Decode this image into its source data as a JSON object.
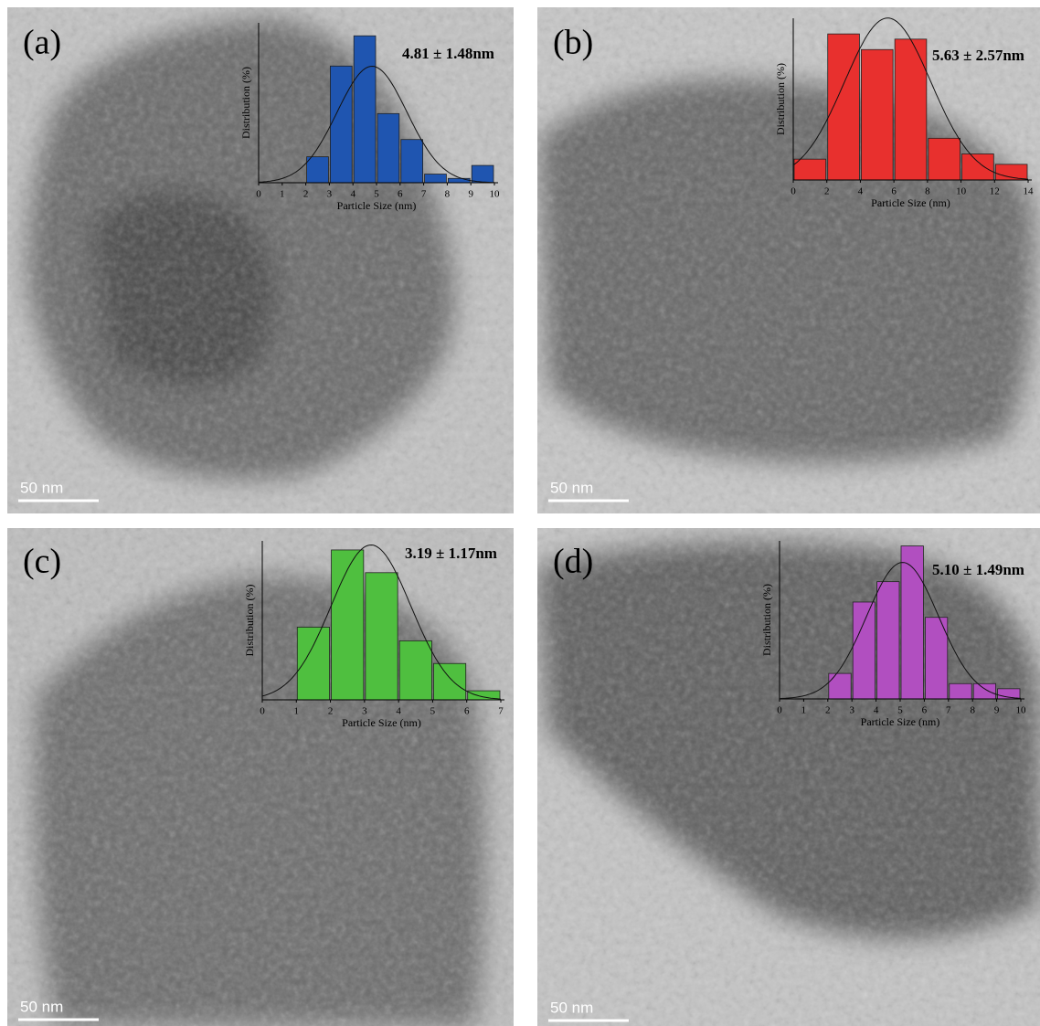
{
  "chart_data": [
    {
      "type": "histogram",
      "title": "(a)",
      "annotation": "4.81 ± 1.48nm",
      "scale_bar": "50 nm",
      "xlabel": "Particle Size (nm)",
      "ylabel": "Distribution (%)",
      "color": "#1f55b0",
      "bins": [
        2,
        3,
        4,
        5,
        6,
        7,
        8,
        9,
        10
      ],
      "values": [
        6,
        27,
        34,
        16,
        10,
        2,
        1,
        4
      ],
      "fit": {
        "mean": 4.81,
        "sd": 1.48
      },
      "xlim": [
        0,
        10
      ],
      "xticks": [
        0,
        1,
        2,
        3,
        4,
        5,
        6,
        7,
        8,
        9,
        10
      ],
      "ylim": [
        0,
        37
      ]
    },
    {
      "type": "histogram",
      "title": "(b)",
      "annotation": "5.63 ± 2.57nm",
      "scale_bar": "50 nm",
      "xlabel": "Particle Size (nm)",
      "ylabel": "Distribution (%)",
      "color": "#e8302e",
      "bins": [
        0,
        2,
        4,
        6,
        8,
        10,
        12,
        14
      ],
      "values": [
        4,
        28,
        25,
        27,
        8,
        5,
        3
      ],
      "fit": {
        "mean": 5.63,
        "sd": 2.57
      },
      "xlim": [
        0,
        14
      ],
      "xticks": [
        0,
        2,
        4,
        6,
        8,
        10,
        12,
        14
      ],
      "ylim": [
        0,
        31
      ]
    },
    {
      "type": "histogram",
      "title": "(c)",
      "annotation": "3.19 ± 1.17nm",
      "scale_bar": "50 nm",
      "xlabel": "Particle Size (nm)",
      "ylabel": "Distribution (%)",
      "color": "#4fbf3f",
      "bins": [
        1,
        2,
        3,
        4,
        5,
        6,
        7
      ],
      "values": [
        16,
        33,
        28,
        13,
        8,
        2
      ],
      "fit": {
        "mean": 3.19,
        "sd": 1.17
      },
      "xlim": [
        0,
        7
      ],
      "xticks": [
        0,
        1,
        2,
        3,
        4,
        5,
        6,
        7
      ],
      "ylim": [
        0,
        35
      ]
    },
    {
      "type": "histogram",
      "title": "(d)",
      "annotation": "5.10 ± 1.49nm",
      "scale_bar": "50 nm",
      "xlabel": "Particle Size (nm)",
      "ylabel": "Distribution (%)",
      "color": "#b14fc0",
      "bins": [
        2,
        3,
        4,
        5,
        6,
        7,
        8,
        9,
        10
      ],
      "values": [
        5,
        19,
        23,
        30,
        16,
        3,
        3,
        2
      ],
      "fit": {
        "mean": 5.1,
        "sd": 1.49
      },
      "xlim": [
        0,
        10
      ],
      "xticks": [
        0,
        1,
        2,
        3,
        4,
        5,
        6,
        7,
        8,
        9,
        10
      ],
      "ylim": [
        0,
        31
      ]
    }
  ]
}
